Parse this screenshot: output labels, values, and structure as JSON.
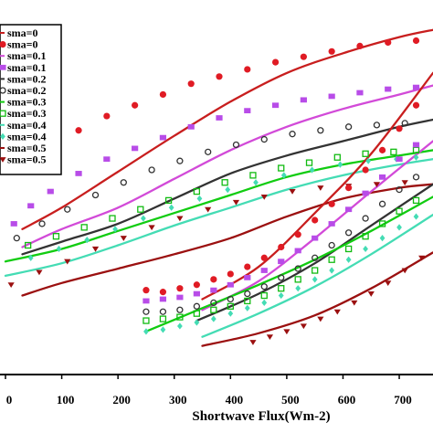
{
  "chart_data": {
    "type": "scatter",
    "title": "",
    "xlabel": "Shortwave Flux(Wm-2)",
    "ylabel": "",
    "xlim": [
      0,
      760
    ],
    "ylim": [
      0,
      100
    ],
    "x_ticks": [
      0,
      100,
      200,
      300,
      400,
      500,
      600,
      700
    ],
    "x_tick_labels": [
      "0",
      "100",
      "200",
      "300",
      "400",
      "500",
      "600",
      "700"
    ],
    "grid": false,
    "legend_position": "top-left",
    "legend": [
      {
        "label": "sma=0",
        "kind": "line",
        "color": "#c81e1e"
      },
      {
        "label": "sma=0",
        "kind": "marker",
        "marker": "filled-circle",
        "color": "#e01b24"
      },
      {
        "label": "sma=0.1",
        "kind": "line",
        "color": "#d24ad8"
      },
      {
        "label": "sma=0.1",
        "kind": "marker",
        "marker": "filled-square",
        "color": "#b84ce8"
      },
      {
        "label": "sma=0.2",
        "kind": "line",
        "color": "#333333"
      },
      {
        "label": "sma=0.2",
        "kind": "marker",
        "marker": "open-circle",
        "color": "#333333"
      },
      {
        "label": "sma=0.3",
        "kind": "line",
        "color": "#11cc11"
      },
      {
        "label": "sma=0.3",
        "kind": "marker",
        "marker": "open-square",
        "color": "#11bb11"
      },
      {
        "label": "sma=0.4",
        "kind": "line",
        "color": "#44dcb4"
      },
      {
        "label": "sma=0.4",
        "kind": "marker",
        "marker": "filled-diamond",
        "color": "#44dcb4"
      },
      {
        "label": "sma=0.5",
        "kind": "line",
        "color": "#9b1010"
      },
      {
        "label": "sma=0.5",
        "kind": "marker",
        "marker": "filled-triangle-down",
        "color": "#9b1010"
      }
    ],
    "series": [
      {
        "color": "#c81e1e",
        "kind": "line",
        "x": [
          30,
          100,
          200,
          300,
          400,
          500,
          600,
          700,
          760
        ],
        "y": [
          40.5,
          46.5,
          56.5,
          66.5,
          76,
          84,
          89.5,
          94,
          96
        ]
      },
      {
        "color": "#e01b24",
        "kind": "marker",
        "marker": "filled-circle",
        "x": [
          10,
          30,
          50,
          80,
          130,
          180,
          230,
          280,
          330,
          380,
          430,
          480,
          530,
          580,
          630,
          680,
          730
        ],
        "y": [
          57,
          60,
          62,
          64,
          68,
          72,
          75,
          78,
          81,
          83,
          85,
          87,
          88.5,
          90,
          91.5,
          92.5,
          93
        ]
      },
      {
        "color": "#d24ad8",
        "kind": "line",
        "x": [
          30,
          100,
          200,
          300,
          400,
          500,
          600,
          700,
          760
        ],
        "y": [
          35.5,
          40.5,
          46.5,
          54.5,
          62.5,
          69,
          74,
          78,
          80.5
        ]
      },
      {
        "color": "#b84ce8",
        "kind": "marker",
        "marker": "filled-square",
        "x": [
          15,
          45,
          80,
          130,
          180,
          230,
          280,
          330,
          380,
          430,
          480,
          530,
          580,
          630,
          680,
          730
        ],
        "y": [
          42,
          47,
          51,
          56,
          60,
          63,
          66,
          69,
          71.5,
          73.5,
          75,
          76.5,
          77.5,
          78.5,
          79.5,
          80
        ]
      },
      {
        "color": "#333333",
        "kind": "line",
        "x": [
          30,
          100,
          200,
          300,
          400,
          500,
          600,
          700,
          760
        ],
        "y": [
          33.5,
          37,
          42,
          49,
          56,
          61,
          65,
          69,
          71
        ]
      },
      {
        "color": "#333333",
        "kind": "marker",
        "marker": "open-circle",
        "x": [
          20,
          65,
          110,
          160,
          210,
          260,
          310,
          360,
          410,
          460,
          510,
          560,
          610,
          660,
          710
        ],
        "y": [
          38,
          42,
          46,
          50,
          53.5,
          57,
          59.5,
          62,
          64,
          65.5,
          67,
          68,
          69,
          69.5,
          70
        ]
      },
      {
        "color": "#11cc11",
        "kind": "line",
        "x": [
          0,
          100,
          200,
          300,
          400,
          500,
          600,
          700,
          760
        ],
        "y": [
          31.5,
          35,
          40,
          45,
          50,
          55,
          58.5,
          61,
          62.5
        ]
      },
      {
        "color": "#11bb11",
        "kind": "marker",
        "marker": "open-square",
        "x": [
          40,
          90,
          140,
          190,
          240,
          290,
          340,
          390,
          440,
          490,
          540,
          590,
          640,
          690,
          730
        ],
        "y": [
          36,
          38.5,
          41,
          43.5,
          46,
          48.5,
          51,
          53.5,
          55.5,
          57.5,
          59,
          60.5,
          61.5,
          62,
          62.5
        ]
      },
      {
        "color": "#44dcb4",
        "kind": "line",
        "x": [
          0,
          100,
          200,
          300,
          400,
          500,
          600,
          700,
          760
        ],
        "y": [
          27.5,
          31,
          36,
          41.5,
          46.5,
          51.5,
          55.5,
          58.5,
          60
        ]
      },
      {
        "color": "#44dcb4",
        "kind": "marker",
        "marker": "filled-diamond",
        "x": [
          45,
          95,
          145,
          195,
          245,
          295,
          345,
          395,
          445,
          495,
          545,
          595,
          645,
          695,
          730
        ],
        "y": [
          32.5,
          35,
          37.5,
          40.5,
          43.5,
          46.5,
          49,
          51.5,
          53.5,
          55.5,
          57,
          58.5,
          59.5,
          60,
          60.5
        ]
      },
      {
        "color": "#9b1010",
        "kind": "line",
        "x": [
          30,
          100,
          200,
          300,
          400,
          500,
          600,
          700,
          760
        ],
        "y": [
          22,
          25.5,
          29.5,
          33.5,
          38,
          44,
          49,
          52,
          53
        ]
      },
      {
        "color": "#9b1010",
        "kind": "marker",
        "marker": "filled-triangle-down",
        "x": [
          10,
          60,
          110,
          160,
          210,
          260,
          310,
          360,
          410,
          460,
          510,
          560,
          610,
          660,
          710
        ],
        "y": [
          25,
          28.5,
          31.5,
          35,
          38,
          41,
          43.5,
          46,
          48,
          49.5,
          51,
          52,
          52.5,
          53,
          53.5
        ]
      },
      {
        "color": "#c81e1e",
        "kind": "line",
        "x": [
          350,
          450,
          550,
          650,
          760
        ],
        "y": [
          21,
          30,
          45,
          61.5,
          84
        ]
      },
      {
        "color": "#e01b24",
        "kind": "marker",
        "marker": "filled-circle",
        "x": [
          250,
          280,
          310,
          340,
          370,
          400,
          430,
          460,
          490,
          520,
          550,
          580,
          610,
          640,
          670,
          700,
          730
        ],
        "y": [
          23.5,
          23,
          24,
          25,
          26.5,
          28,
          30,
          32.5,
          35.5,
          39,
          43,
          47.5,
          52,
          57,
          62.5,
          68.5,
          75
        ]
      },
      {
        "color": "#d24ad8",
        "kind": "line",
        "x": [
          350,
          450,
          550,
          650,
          760
        ],
        "y": [
          18,
          26,
          38,
          51,
          65
        ]
      },
      {
        "color": "#b84ce8",
        "kind": "marker",
        "marker": "filled-square",
        "x": [
          250,
          280,
          310,
          340,
          370,
          400,
          430,
          460,
          490,
          520,
          550,
          580,
          610,
          640,
          670,
          700,
          730
        ],
        "y": [
          20.5,
          21,
          21.5,
          22.5,
          23.5,
          25,
          27,
          29,
          31.5,
          34.5,
          38,
          42,
          46,
          50.5,
          55,
          60,
          64
        ]
      },
      {
        "color": "#333333",
        "kind": "line",
        "x": [
          340,
          450,
          550,
          650,
          760
        ],
        "y": [
          15,
          22.5,
          31,
          41.5,
          53
        ]
      },
      {
        "color": "#333333",
        "kind": "marker",
        "marker": "open-circle",
        "x": [
          250,
          280,
          310,
          340,
          370,
          400,
          430,
          460,
          490,
          520,
          550,
          580,
          610,
          640,
          670,
          700,
          730
        ],
        "y": [
          17.5,
          17.5,
          18,
          19,
          20,
          21,
          22.5,
          24.5,
          27,
          29.5,
          32.5,
          36,
          39.5,
          43.5,
          47.5,
          51.5,
          55
        ]
      },
      {
        "color": "#11cc11",
        "kind": "line",
        "x": [
          250,
          350,
          450,
          550,
          650,
          760
        ],
        "y": [
          12,
          18.5,
          25,
          32,
          40,
          49.5
        ]
      },
      {
        "color": "#11bb11",
        "kind": "marker",
        "marker": "open-square",
        "x": [
          250,
          280,
          310,
          340,
          370,
          400,
          430,
          460,
          490,
          520,
          550,
          580,
          610,
          640,
          670,
          700,
          730
        ],
        "y": [
          15,
          15.5,
          16,
          17,
          18,
          19,
          20.5,
          22,
          24,
          26.5,
          29,
          32,
          35,
          38.5,
          42,
          45.5,
          48.5
        ]
      },
      {
        "color": "#44dcb4",
        "kind": "line",
        "x": [
          350,
          450,
          550,
          650,
          760
        ],
        "y": [
          10.5,
          17,
          24.5,
          33.5,
          44.5
        ]
      },
      {
        "color": "#44dcb4",
        "kind": "marker",
        "marker": "filled-diamond",
        "x": [
          250,
          280,
          310,
          340,
          370,
          400,
          430,
          460,
          490,
          520,
          550,
          580,
          610,
          640,
          670,
          700,
          730
        ],
        "y": [
          12,
          12.5,
          13.5,
          14.5,
          15.5,
          17,
          18.5,
          20,
          22,
          24,
          26.5,
          29,
          32,
          35,
          38,
          41,
          44
        ]
      },
      {
        "color": "#9b1010",
        "kind": "line",
        "x": [
          350,
          450,
          550,
          650,
          760
        ],
        "y": [
          8,
          11.5,
          16.5,
          24,
          34
        ]
      },
      {
        "color": "#9b1010",
        "kind": "marker",
        "marker": "filled-triangle-down",
        "x": [
          440,
          470,
          500,
          530,
          560,
          590,
          620,
          650,
          680,
          710,
          740
        ],
        "y": [
          9,
          10.5,
          12,
          13.5,
          15.5,
          17.5,
          20,
          22.5,
          25.5,
          29,
          32.5
        ]
      }
    ]
  }
}
